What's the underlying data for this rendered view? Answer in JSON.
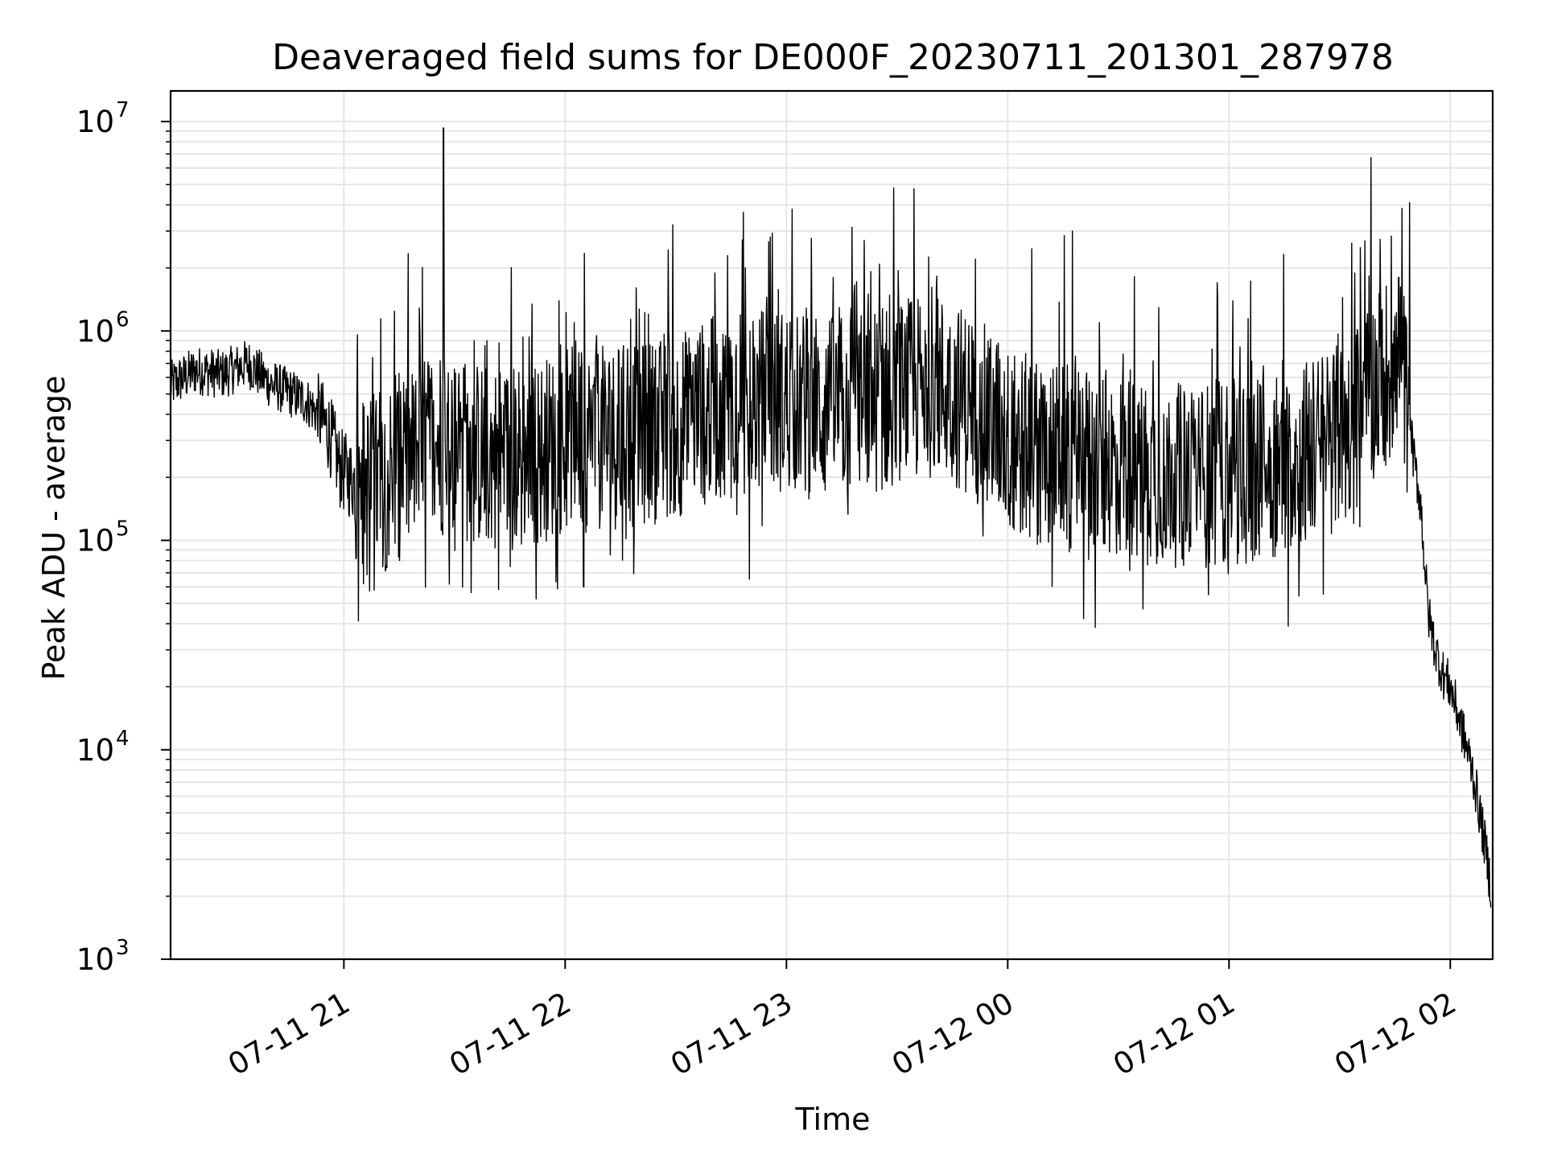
{
  "chart_data": {
    "type": "line",
    "title": "Deaveraged field sums for DE000F_20230711_201301_287978",
    "xlabel": "Time",
    "ylabel": "Peak ADU - average",
    "y_scale": "log",
    "ylim": [
      1000,
      14000000
    ],
    "xlim": [
      "2023-07-11 20:13:01",
      "2023-07-12 02:11:30"
    ],
    "x_ticks": [
      {
        "t": "2023-07-11 21:00",
        "label": "07-11 21"
      },
      {
        "t": "2023-07-11 22:00",
        "label": "07-11 22"
      },
      {
        "t": "2023-07-11 23:00",
        "label": "07-11 23"
      },
      {
        "t": "2023-07-12 00:00",
        "label": "07-12 00"
      },
      {
        "t": "2023-07-12 01:00",
        "label": "07-12 01"
      },
      {
        "t": "2023-07-12 02:00",
        "label": "07-12 02"
      }
    ],
    "y_ticks": [
      {
        "value": 1000,
        "base": "10",
        "exp": "3"
      },
      {
        "value": 10000,
        "base": "10",
        "exp": "4"
      },
      {
        "value": 100000,
        "base": "10",
        "exp": "5"
      },
      {
        "value": 1000000,
        "base": "10",
        "exp": "6"
      },
      {
        "value": 10000000,
        "base": "10",
        "exp": "7"
      }
    ],
    "grid": true,
    "line_color": "#000000",
    "grid_color": "#e6e6e6",
    "series": [
      {
        "points": [
          [
            "2023-07-11 20:13",
            550000
          ],
          [
            "2023-07-11 20:20",
            650000
          ],
          [
            "2023-07-11 20:27",
            620000
          ],
          [
            "2023-07-11 20:34",
            700000
          ],
          [
            "2023-07-11 20:40",
            560000
          ],
          [
            "2023-07-11 20:46",
            500000
          ],
          [
            "2023-07-11 20:50",
            460000
          ],
          [
            "2023-07-11 20:53",
            400000
          ],
          [
            "2023-07-11 20:56",
            330000
          ],
          [
            "2023-07-11 20:59",
            220000
          ],
          [
            "2023-07-11 21:03",
            190000
          ],
          [
            "2023-07-11 21:08",
            175000
          ],
          [
            "2023-07-11 21:14",
            220000
          ],
          [
            "2023-07-11 21:20",
            250000
          ],
          [
            "2023-07-11 21:24",
            300000
          ],
          [
            "2023-07-11 21:30",
            280000
          ],
          [
            "2023-07-11 21:36",
            260000
          ],
          [
            "2023-07-11 21:44",
            250000
          ],
          [
            "2023-07-11 21:52",
            260000
          ],
          [
            "2023-07-11 22:00",
            300000
          ],
          [
            "2023-07-11 22:10",
            310000
          ],
          [
            "2023-07-11 22:20",
            320000
          ],
          [
            "2023-07-11 22:30",
            350000
          ],
          [
            "2023-07-11 22:40",
            420000
          ],
          [
            "2023-07-11 22:50",
            450000
          ],
          [
            "2023-07-11 23:00",
            470000
          ],
          [
            "2023-07-11 23:10",
            420000
          ],
          [
            "2023-07-11 23:20",
            440000
          ],
          [
            "2023-07-11 23:30",
            500000
          ],
          [
            "2023-07-11 23:40",
            560000
          ],
          [
            "2023-07-11 23:50",
            450000
          ],
          [
            "2023-07-12 00:00",
            300000
          ],
          [
            "2023-07-12 00:10",
            260000
          ],
          [
            "2023-07-12 00:20",
            240000
          ],
          [
            "2023-07-12 00:30",
            230000
          ],
          [
            "2023-07-12 00:40",
            210000
          ],
          [
            "2023-07-12 00:50",
            200000
          ],
          [
            "2023-07-12 01:00",
            210000
          ],
          [
            "2023-07-12 01:10",
            220000
          ],
          [
            "2023-07-12 01:20",
            260000
          ],
          [
            "2023-07-12 01:28",
            300000
          ],
          [
            "2023-07-12 01:34",
            350000
          ],
          [
            "2023-07-12 01:38",
            520000
          ],
          [
            "2023-07-12 01:43",
            650000
          ],
          [
            "2023-07-12 01:47",
            620000
          ],
          [
            "2023-07-12 01:49",
            400000
          ],
          [
            "2023-07-12 01:50",
            250000
          ],
          [
            "2023-07-12 01:52",
            150000
          ],
          [
            "2023-07-12 01:53",
            80000
          ],
          [
            "2023-07-12 01:54",
            45000
          ],
          [
            "2023-07-12 01:56",
            30000
          ],
          [
            "2023-07-12 01:58",
            23000
          ],
          [
            "2023-07-12 02:00",
            20000
          ],
          [
            "2023-07-12 02:02",
            15000
          ],
          [
            "2023-07-12 02:04",
            11000
          ],
          [
            "2023-07-12 02:06",
            8000
          ],
          [
            "2023-07-12 02:08",
            5000
          ],
          [
            "2023-07-12 02:10",
            3000
          ],
          [
            "2023-07-12 02:11",
            2200
          ]
        ],
        "spikes": [
          [
            "2023-07-11 21:27",
            9300000
          ],
          [
            "2023-07-11 22:44",
            2300000
          ],
          [
            "2023-07-12 01:41",
            2750000
          ],
          [
            "2023-07-12 01:44",
            2850000
          ],
          [
            "2023-07-12 01:46",
            1800000
          ],
          [
            "2023-07-12 01:01",
            1400000
          ],
          [
            "2023-07-12 00:14",
            1380000
          ],
          [
            "2023-07-11 21:51",
            1350000
          ],
          [
            "2023-07-11 21:10",
            1150000
          ],
          [
            "2023-07-12 00:41",
            1300000
          ],
          [
            "2023-07-11 21:42",
            58000
          ],
          [
            "2023-07-11 22:05",
            60000
          ],
          [
            "2023-07-11 22:50",
            65000
          ],
          [
            "2023-07-12 00:12",
            60000
          ],
          [
            "2023-07-12 01:19",
            54000
          ],
          [
            "2023-07-11 21:07",
            57000
          ]
        ]
      }
    ]
  }
}
